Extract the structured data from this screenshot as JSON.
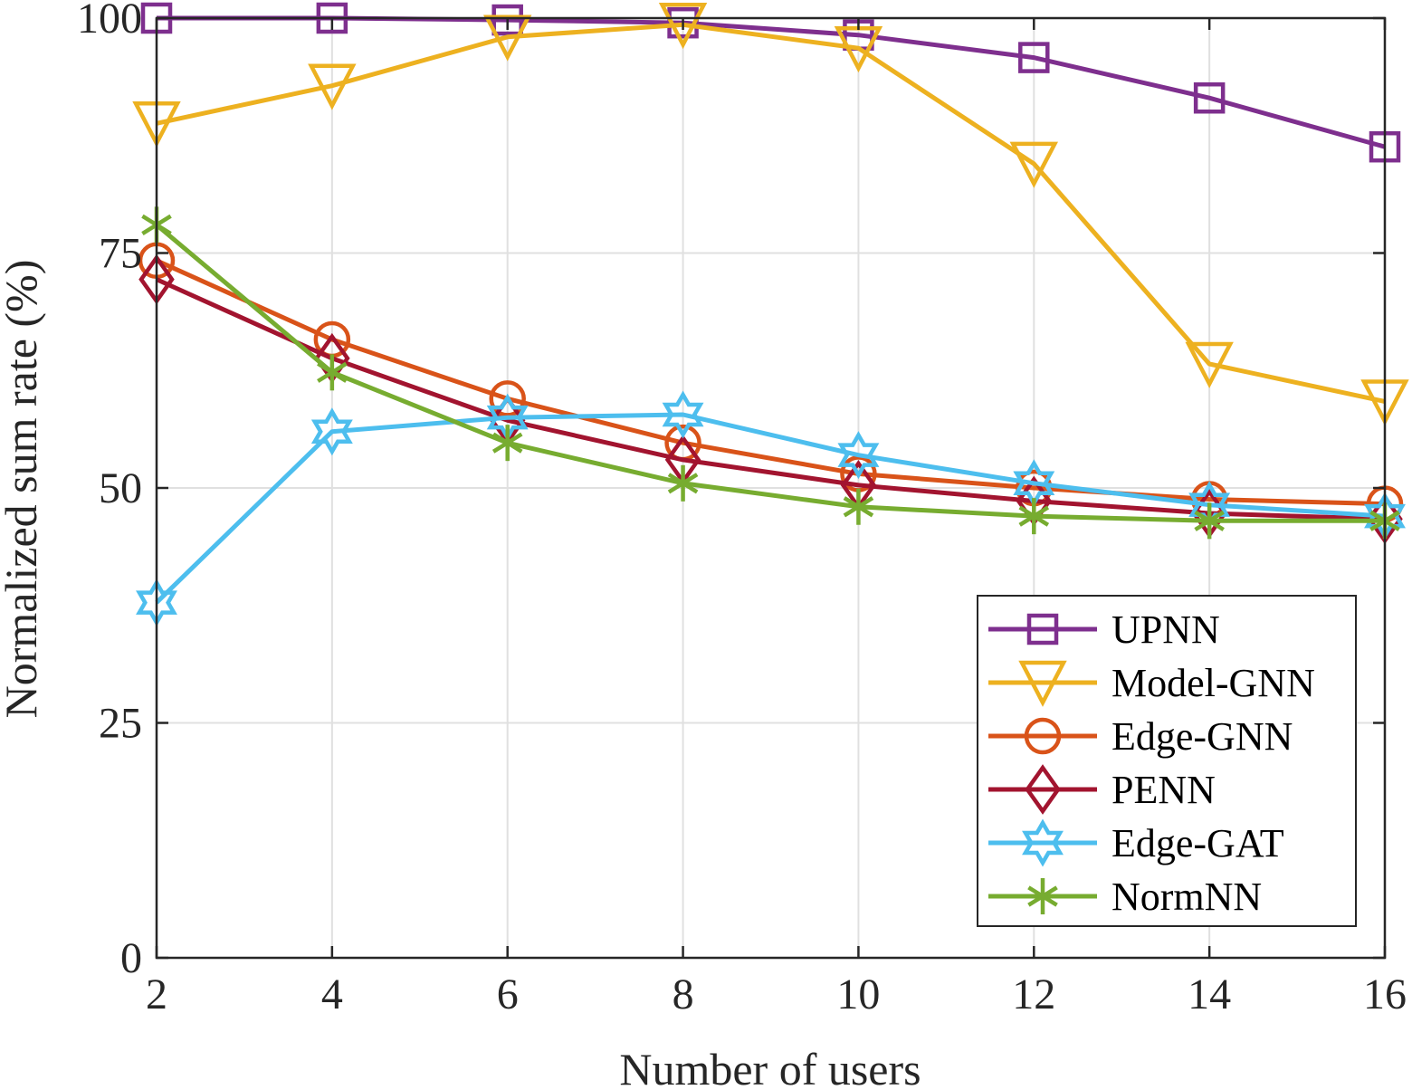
{
  "chart_data": {
    "type": "line",
    "xlabel": "Number of users",
    "ylabel": "Normalized sum rate (%)",
    "x": [
      2,
      4,
      6,
      8,
      10,
      12,
      14,
      16
    ],
    "xlim": [
      2,
      16
    ],
    "ylim": [
      0,
      100
    ],
    "xticks": [
      "2",
      "4",
      "6",
      "8",
      "10",
      "12",
      "14",
      "16"
    ],
    "yticks": [
      "0",
      "25",
      "50",
      "75",
      "100"
    ],
    "xtick_values": [
      2,
      4,
      6,
      8,
      10,
      12,
      14,
      16
    ],
    "ytick_values": [
      0,
      25,
      50,
      75,
      100
    ],
    "grid": true,
    "legend_position": "bottom-right",
    "series": [
      {
        "name": "UPNN",
        "color": "#7E2F8E",
        "marker": "square",
        "values": [
          100,
          100,
          99.8,
          99.5,
          98.2,
          95.8,
          91.5,
          86.3
        ]
      },
      {
        "name": "Model-GNN",
        "color": "#EDB120",
        "marker": "triangle-down",
        "values": [
          88.8,
          92.8,
          98.0,
          99.3,
          96.8,
          84.5,
          63.2,
          59.2
        ]
      },
      {
        "name": "Edge-GNN",
        "color": "#D95319",
        "marker": "circle",
        "values": [
          74.2,
          65.8,
          59.5,
          54.8,
          51.5,
          50.0,
          48.8,
          48.3
        ]
      },
      {
        "name": "PENN",
        "color": "#A2142F",
        "marker": "diamond",
        "values": [
          72.2,
          63.8,
          57.2,
          53.0,
          50.3,
          48.6,
          47.3,
          46.7
        ]
      },
      {
        "name": "Edge-GAT",
        "color": "#4DBEEE",
        "marker": "hexagram",
        "values": [
          37.8,
          56.0,
          57.5,
          57.8,
          53.5,
          50.5,
          48.2,
          47.0
        ]
      },
      {
        "name": "NormNN",
        "color": "#77AC30",
        "marker": "asterisk",
        "values": [
          78.0,
          62.3,
          54.8,
          50.5,
          48.0,
          47.0,
          46.5,
          46.5
        ]
      }
    ]
  }
}
